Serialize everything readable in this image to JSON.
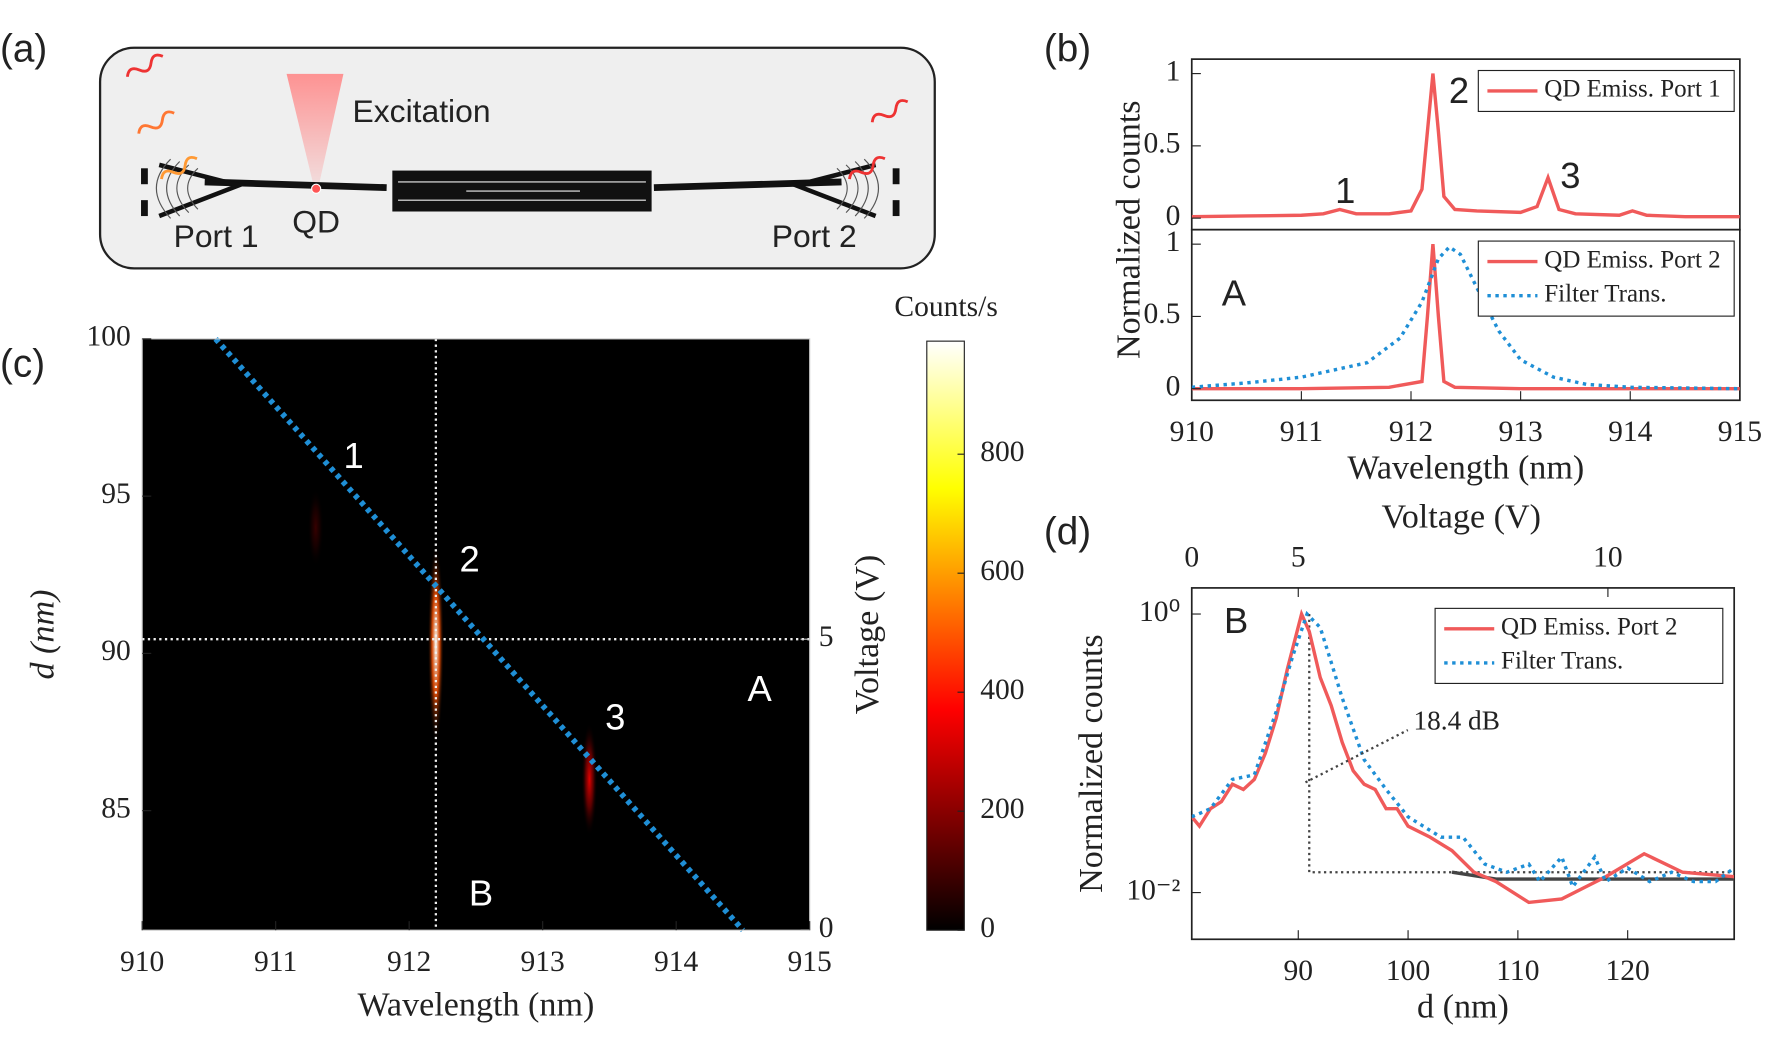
{
  "panel_labels": [
    "(a)",
    "(b)",
    "(c)",
    "(d)"
  ],
  "diagram": {
    "excitation": "Excitation",
    "qd": "QD",
    "port1": "Port 1",
    "port2": "Port 2"
  },
  "chart_data": [
    {
      "type": "line",
      "ylabel": "Normalized counts",
      "xlim": [
        910,
        915
      ],
      "ylim": [
        -0.08,
        1.1
      ],
      "yticks": [
        0,
        0.5,
        1
      ],
      "series": [
        {
          "name": "QD Emiss. Port 1",
          "color": "#f05a5a",
          "x": [
            910,
            910.5,
            911,
            911.2,
            911.35,
            911.5,
            911.8,
            912,
            912.1,
            912.15,
            912.2,
            912.25,
            912.3,
            912.4,
            912.6,
            913,
            913.15,
            913.25,
            913.35,
            913.5,
            913.9,
            914.02,
            914.15,
            914.5,
            915
          ],
          "values": [
            0.01,
            0.015,
            0.02,
            0.03,
            0.06,
            0.03,
            0.03,
            0.05,
            0.2,
            0.6,
            1,
            0.6,
            0.15,
            0.06,
            0.05,
            0.04,
            0.08,
            0.28,
            0.06,
            0.03,
            0.02,
            0.05,
            0.02,
            0.01,
            0.01
          ]
        }
      ],
      "annotations": [
        "1",
        "2",
        "3"
      ]
    },
    {
      "type": "line",
      "xlabel": "Wavelength (nm)",
      "xlim": [
        910,
        915
      ],
      "ylim": [
        -0.08,
        1.1
      ],
      "yticks": [
        0,
        0.5,
        1
      ],
      "xticks": [
        910,
        911,
        912,
        913,
        914,
        915
      ],
      "series": [
        {
          "name": "QD Emiss. Port 2",
          "color": "#f05a5a",
          "style": "solid",
          "x": [
            910,
            911,
            911.8,
            912.1,
            912.15,
            912.2,
            912.25,
            912.3,
            912.4,
            913,
            914,
            915
          ],
          "values": [
            0,
            0,
            0.01,
            0.05,
            0.5,
            1,
            0.5,
            0.05,
            0.01,
            0,
            0,
            0
          ]
        },
        {
          "name": "Filter Trans.",
          "color": "#1f8fd6",
          "style": "dotted",
          "x": [
            910,
            910.5,
            911,
            911.3,
            911.6,
            911.9,
            912.1,
            912.25,
            912.35,
            912.45,
            912.6,
            912.8,
            913,
            913.3,
            913.6,
            914,
            915
          ],
          "values": [
            0.01,
            0.04,
            0.08,
            0.13,
            0.18,
            0.35,
            0.6,
            0.9,
            0.98,
            0.93,
            0.7,
            0.4,
            0.2,
            0.08,
            0.03,
            0.01,
            0
          ]
        }
      ],
      "annotations": [
        "A"
      ]
    },
    {
      "type": "heatmap",
      "xlabel": "Wavelength (nm)",
      "ylabel": "d (nm)",
      "y2label": "Voltage (V)",
      "xlim": [
        910,
        915
      ],
      "ylim": [
        81.2,
        100
      ],
      "xticks": [
        910,
        911,
        912,
        913,
        914,
        915
      ],
      "yticks": [
        85,
        90,
        95,
        100
      ],
      "y2lim": [
        0,
        10.16
      ],
      "y2ticks": [
        0,
        5
      ],
      "colorbar": {
        "label": "Counts/s",
        "clim": [
          0,
          990
        ],
        "ticks": [
          0,
          200,
          400,
          600,
          800
        ]
      },
      "peaks": {
        "x": [
          911.3,
          912.2,
          913.35
        ],
        "y": [
          94,
          90.3,
          86
        ],
        "values": [
          80,
          980,
          330
        ]
      },
      "guides": {
        "wavelength": 912.2,
        "voltage": 5
      },
      "filter_line": {
        "x": [
          910.55,
          914.5
        ],
        "y": [
          100,
          81.2
        ]
      },
      "annotations": [
        "1",
        "2",
        "3",
        "A",
        "B"
      ]
    },
    {
      "type": "line",
      "scale": "log",
      "xlabel": "d (nm)",
      "ylabel": "Normalized counts",
      "x2label": "Voltage (V)",
      "xlim": [
        80.3,
        129.7
      ],
      "ylim": [
        0.00462,
        1.54
      ],
      "xticks": [
        90,
        100,
        110,
        120
      ],
      "yticks": [
        {
          "value": 1,
          "label": "10⁰"
        },
        {
          "value": 0.01,
          "label": "10⁻²"
        }
      ],
      "x2ticks": [
        {
          "value": 80.3,
          "label": "0"
        },
        {
          "value": 90,
          "label": "5"
        },
        {
          "value": 118.2,
          "label": "10"
        }
      ],
      "series": [
        {
          "name": "QD Emiss. Port 2",
          "color": "#f05a5a",
          "style": "solid",
          "x": [
            80.3,
            81,
            82,
            83,
            84,
            85,
            86,
            87,
            88,
            89,
            90.3,
            91,
            92,
            93,
            94,
            95,
            96,
            97,
            98,
            99,
            100,
            102,
            104,
            106,
            108,
            111,
            114,
            118,
            121.5,
            125,
            129.7
          ],
          "values": [
            0.035,
            0.03,
            0.04,
            0.045,
            0.06,
            0.055,
            0.065,
            0.1,
            0.18,
            0.4,
            1,
            0.75,
            0.35,
            0.22,
            0.12,
            0.075,
            0.06,
            0.055,
            0.04,
            0.04,
            0.03,
            0.025,
            0.02,
            0.014,
            0.012,
            0.0085,
            0.009,
            0.013,
            0.019,
            0.014,
            0.013
          ]
        },
        {
          "name": "Filter Trans.",
          "color": "#1f8fd6",
          "style": "dotted",
          "x": [
            80.3,
            82,
            84,
            86,
            88,
            89.5,
            90.8,
            92,
            93,
            94,
            95,
            96,
            98,
            100,
            103,
            105,
            107,
            109,
            111,
            112,
            114,
            115,
            117,
            118,
            120,
            122,
            124,
            126,
            128,
            129.7
          ],
          "values": [
            0.035,
            0.04,
            0.065,
            0.07,
            0.2,
            0.5,
            1,
            0.8,
            0.45,
            0.25,
            0.15,
            0.09,
            0.055,
            0.035,
            0.025,
            0.025,
            0.016,
            0.014,
            0.016,
            0.012,
            0.018,
            0.011,
            0.018,
            0.012,
            0.015,
            0.012,
            0.014,
            0.012,
            0.012,
            0.015
          ]
        }
      ],
      "baseline": {
        "x": [
          104,
          108,
          115,
          122,
          129.7
        ],
        "values": [
          0.014,
          0.0125,
          0.0125,
          0.0125,
          0.0125
        ]
      },
      "extinction": {
        "x": [
          91,
          91,
          129.7
        ],
        "values": [
          1,
          0.014,
          0.014
        ]
      },
      "annotation": "18.4 dB",
      "annotations": [
        "B"
      ]
    }
  ]
}
